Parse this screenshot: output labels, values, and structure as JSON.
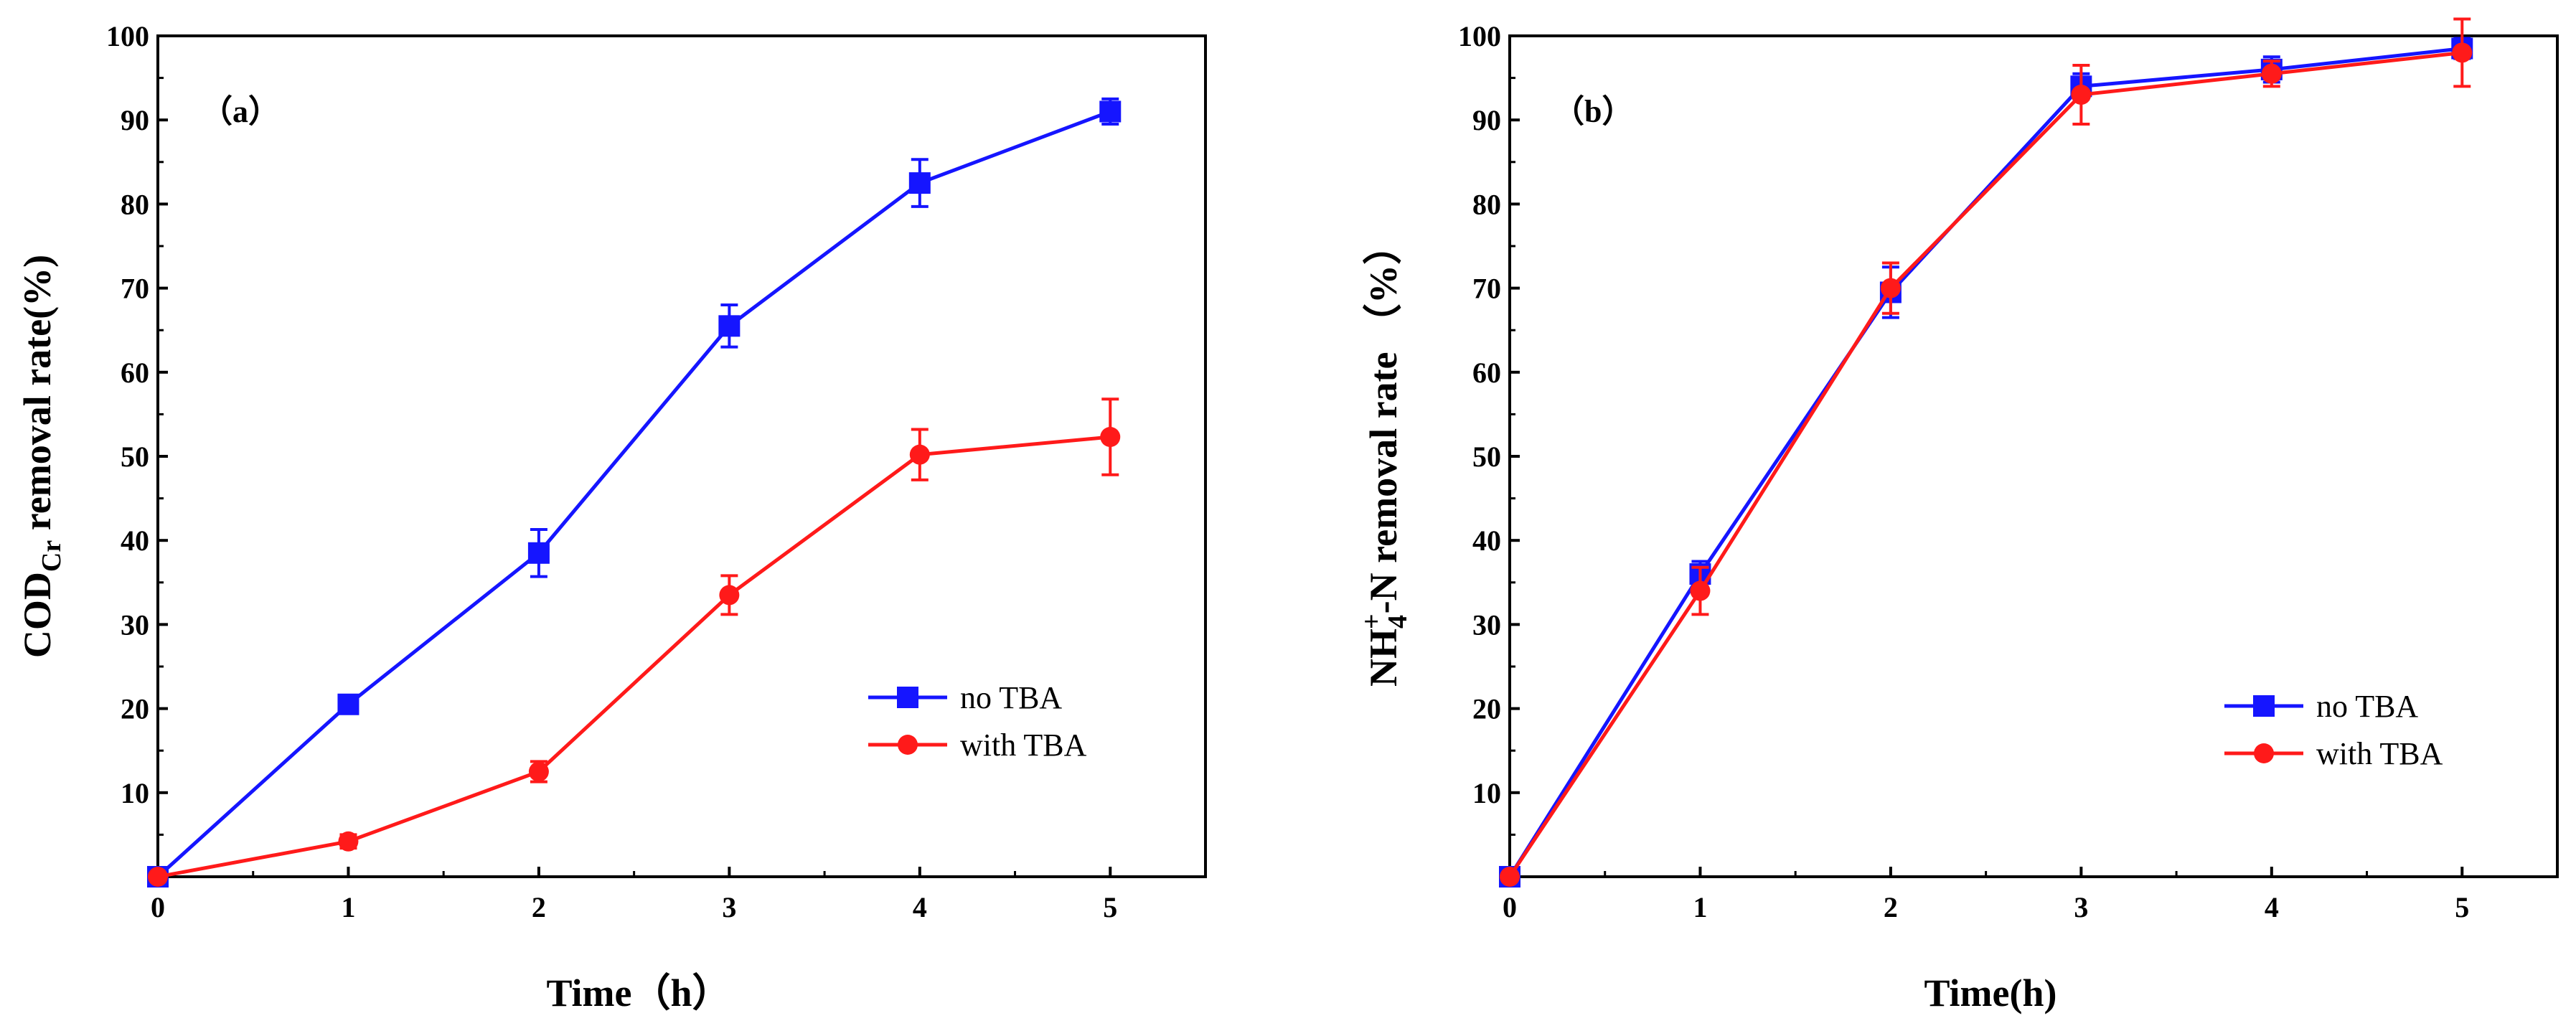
{
  "chart_data": [
    {
      "type": "line",
      "panel_label": "（a）",
      "xlabel": "Time（h）",
      "ylabel_main": "COD",
      "ylabel_sub": "Cr",
      "ylabel_rest": " removal rate(%)",
      "xlim": [
        0,
        5.5
      ],
      "ylim": [
        0,
        100
      ],
      "x_ticks": [
        "0",
        "1",
        "2",
        "3",
        "4",
        "5"
      ],
      "y_ticks": [
        "10",
        "20",
        "30",
        "40",
        "50",
        "60",
        "70",
        "80",
        "90",
        "100"
      ],
      "legend_position": "center-right",
      "x": [
        0,
        1,
        2,
        3,
        4,
        5
      ],
      "series": [
        {
          "name": "no TBA",
          "color": "#1515ff",
          "marker": "square",
          "values": [
            0,
            20.5,
            38.5,
            65.5,
            82.5,
            91
          ],
          "errors": [
            0,
            1.0,
            2.8,
            2.5,
            2.8,
            1.5
          ]
        },
        {
          "name": "with TBA",
          "color": "#ff1a1a",
          "marker": "circle",
          "values": [
            0,
            4.2,
            12.5,
            33.5,
            50.2,
            52.3
          ],
          "errors": [
            0,
            0.8,
            1.2,
            2.3,
            3.0,
            4.5
          ]
        }
      ]
    },
    {
      "type": "line",
      "panel_label": "（b）",
      "xlabel": "Time(h)",
      "ylabel_main": "NH",
      "ylabel_sub": "4",
      "ylabel_sup": "+",
      "ylabel_rest": "-N removal rate （%）",
      "xlim": [
        0,
        5.5
      ],
      "ylim": [
        0,
        100
      ],
      "x_ticks": [
        "0",
        "1",
        "2",
        "3",
        "4",
        "5"
      ],
      "y_ticks": [
        "10",
        "20",
        "30",
        "40",
        "50",
        "60",
        "70",
        "80",
        "90",
        "100"
      ],
      "legend_position": "bottom-right",
      "x": [
        0,
        1,
        2,
        3,
        4,
        5
      ],
      "series": [
        {
          "name": "no TBA",
          "color": "#1515ff",
          "marker": "square",
          "values": [
            0,
            36.0,
            69.5,
            94.0,
            96.0,
            98.5
          ],
          "errors": [
            0,
            1.5,
            3.0,
            1.5,
            1.5,
            1.2
          ]
        },
        {
          "name": "with TBA",
          "color": "#ff1a1a",
          "marker": "circle",
          "values": [
            0,
            34.0,
            70.0,
            93.0,
            95.5,
            98.0
          ],
          "errors": [
            0,
            2.8,
            3.0,
            3.5,
            1.5,
            4.0
          ]
        }
      ]
    }
  ]
}
